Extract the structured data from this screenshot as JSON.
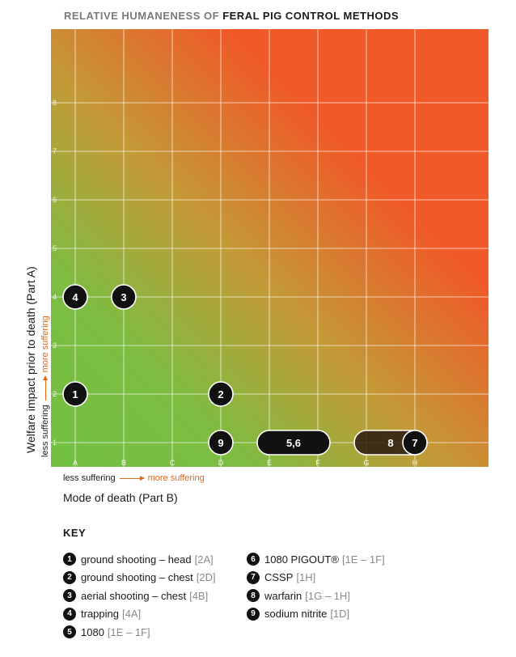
{
  "title": {
    "part1": "RELATIVE HUMANENESS OF",
    "part2": "FERAL PIG CONTROL METHODS"
  },
  "chart_data": {
    "type": "scatter",
    "x_categories": [
      "A",
      "B",
      "C",
      "D",
      "E",
      "F",
      "G",
      "H"
    ],
    "y_ticks": [
      "1",
      "2",
      "3",
      "4",
      "5",
      "6",
      "7",
      "8"
    ],
    "xlabel": "Mode of death (Part B)",
    "ylabel": "Welfare impact prior to death (Part A)",
    "x_sub": {
      "less": "less suffering",
      "more": "more suffering"
    },
    "y_sub": {
      "less": "less suffering",
      "more": "more suffering"
    },
    "gradient": {
      "low": "#72c043",
      "mid": "#c39a37",
      "high": "#ef5a28"
    },
    "points": [
      {
        "label": "1",
        "x": "A",
        "y": 2
      },
      {
        "label": "2",
        "x": "D",
        "y": 2
      },
      {
        "label": "3",
        "x": "B",
        "y": 4
      },
      {
        "label": "4",
        "x": "A",
        "y": 4
      },
      {
        "label": "9",
        "x": "D",
        "y": 1
      }
    ],
    "ranges": [
      {
        "label": "5,6",
        "x_from": "E",
        "x_to": "F",
        "y": 1,
        "color": "#111111"
      },
      {
        "label": "8",
        "x_from": "G",
        "x_to": "H",
        "y": 1,
        "color": "#2a1a10"
      }
    ],
    "extra_points": [
      {
        "label": "7",
        "x": "H",
        "y": 1
      }
    ]
  },
  "key": {
    "title": "KEY",
    "items": [
      {
        "num": "1",
        "name": "ground shooting – head",
        "code": "[2A]"
      },
      {
        "num": "2",
        "name": "ground shooting – chest",
        "code": "[2D]"
      },
      {
        "num": "3",
        "name": "aerial shooting – chest",
        "code": "[4B]"
      },
      {
        "num": "4",
        "name": "trapping",
        "code": "[4A]"
      },
      {
        "num": "5",
        "name": "1080",
        "code": "[1E – 1F]"
      },
      {
        "num": "6",
        "name": "1080 PIGOUT®",
        "code": "[1E – 1F]"
      },
      {
        "num": "7",
        "name": "CSSP",
        "code": "[1H]"
      },
      {
        "num": "8",
        "name": "warfarin",
        "code": "[1G – 1H]"
      },
      {
        "num": "9",
        "name": "sodium nitrite",
        "code": "[1D]"
      }
    ]
  }
}
